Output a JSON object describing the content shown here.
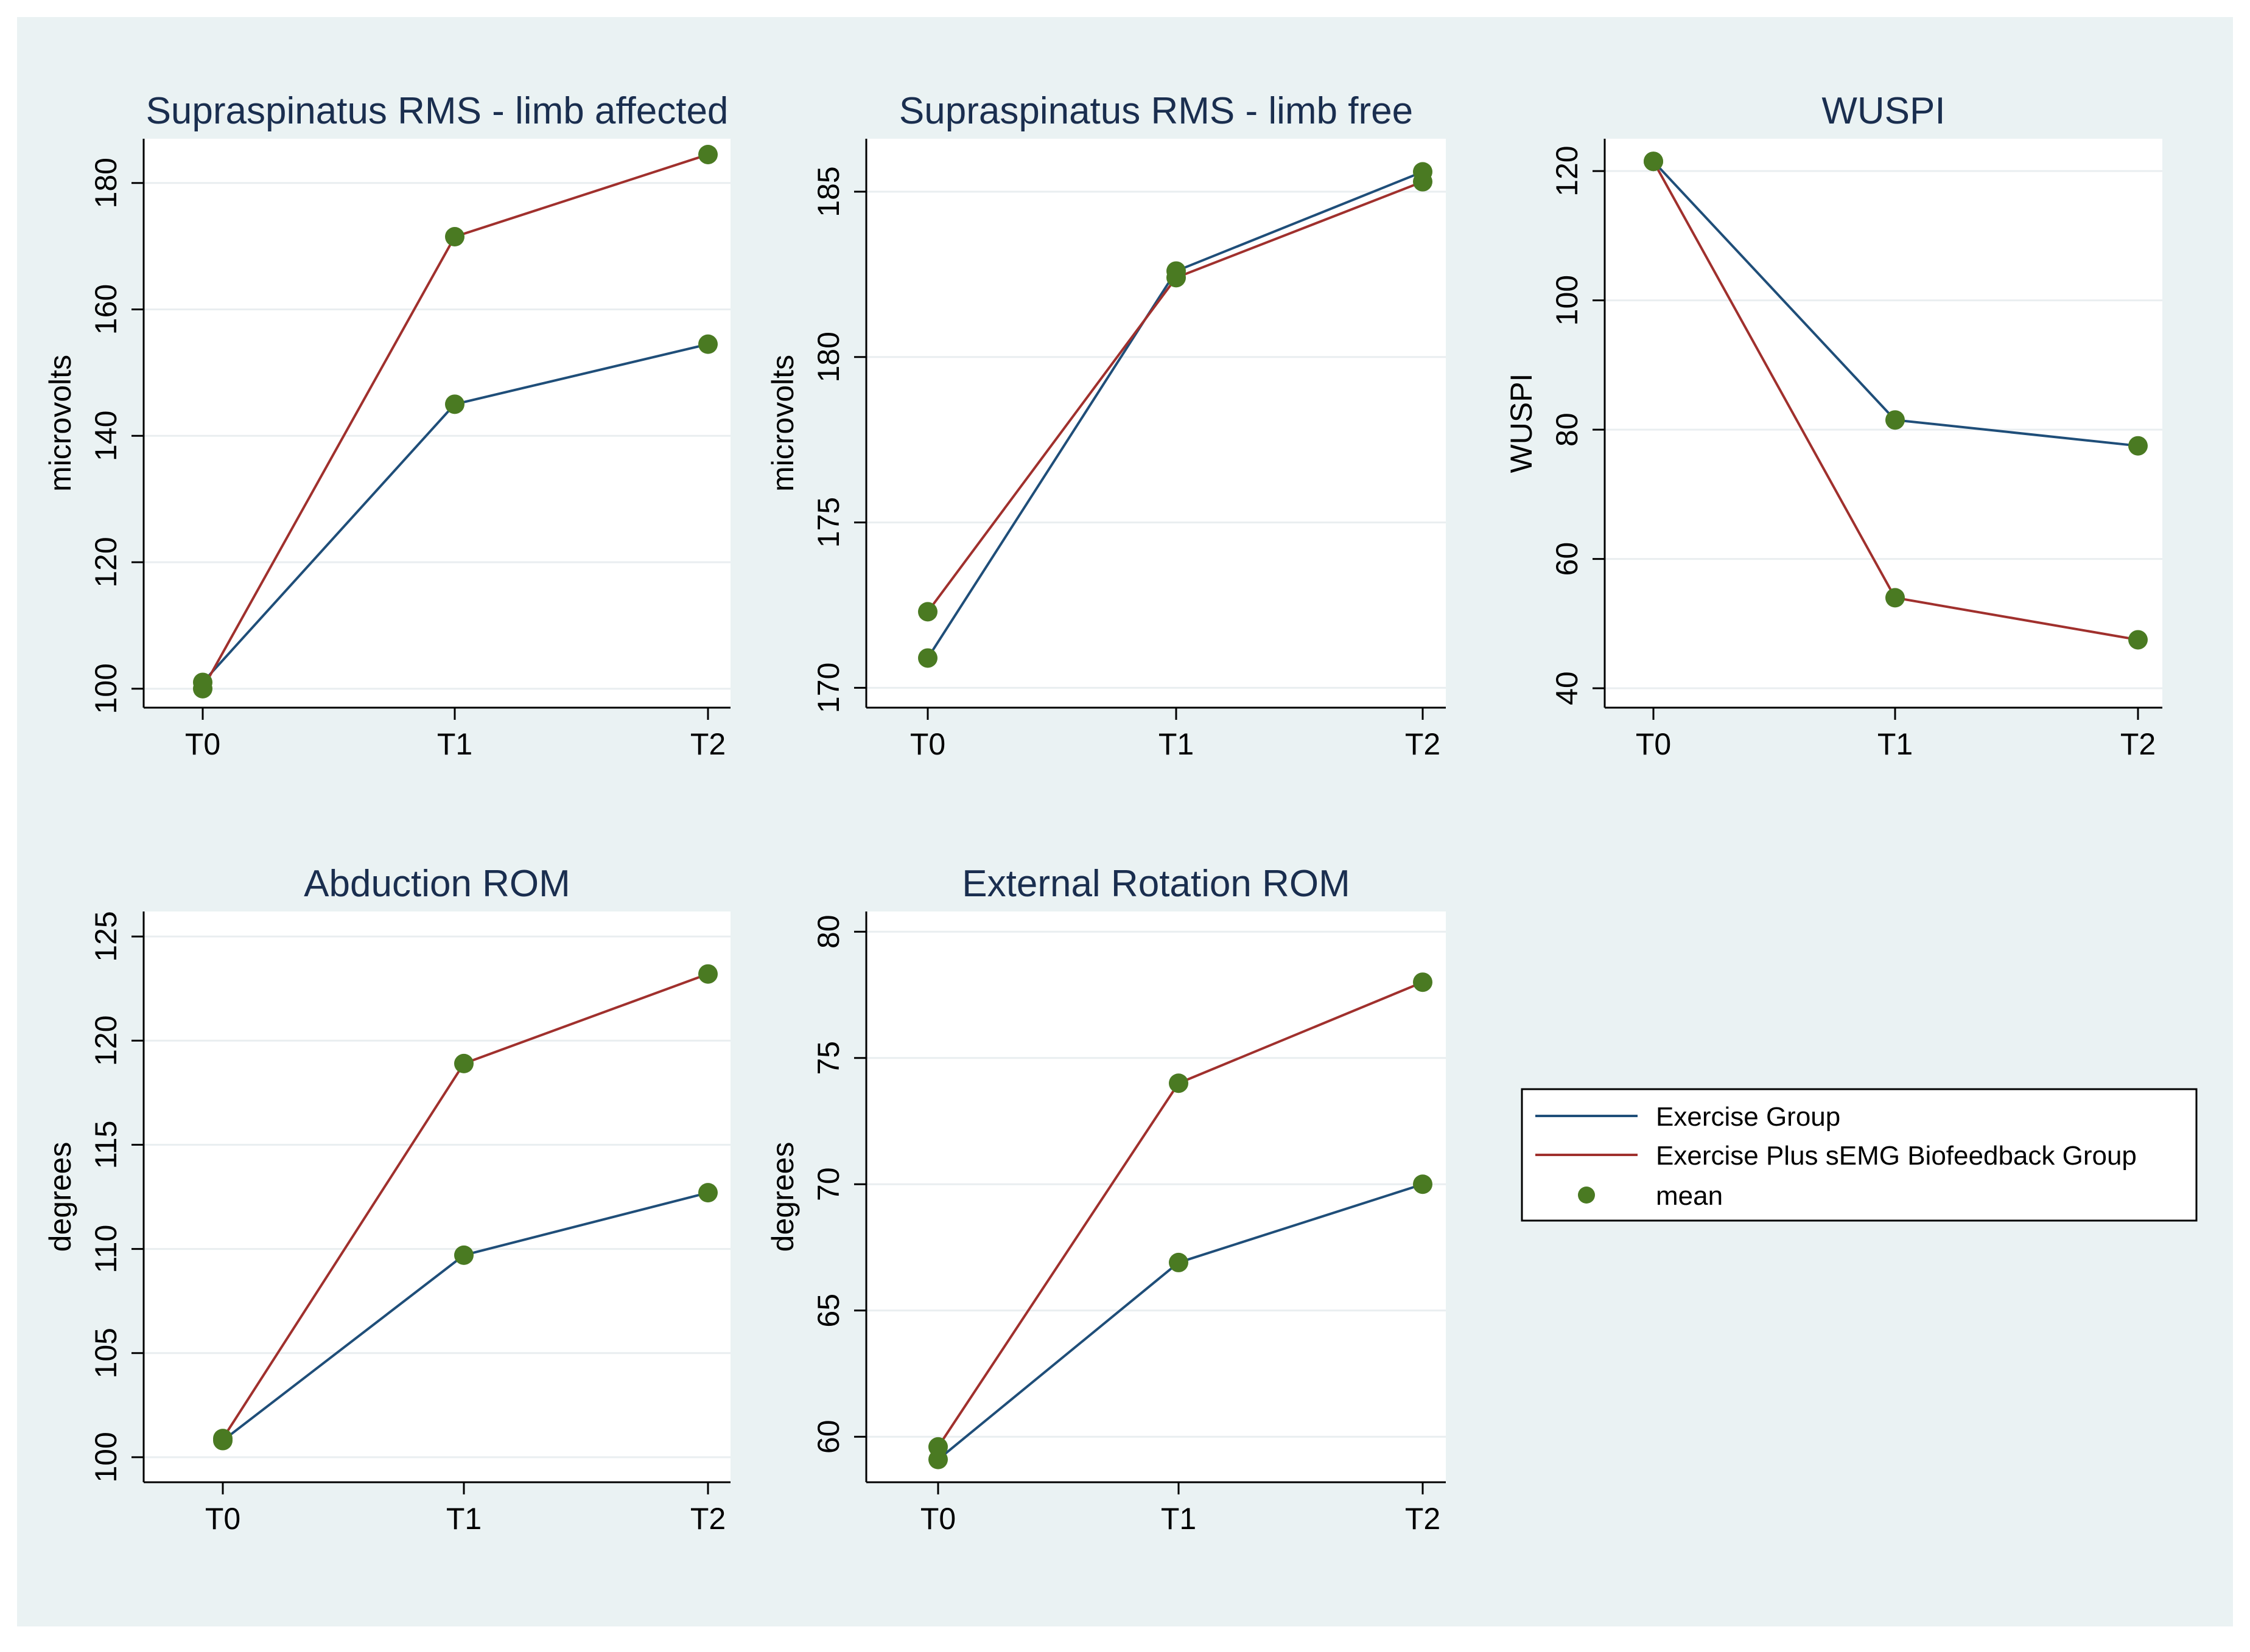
{
  "chart_data": [
    {
      "type": "line",
      "title": "Supraspinatus RMS - limb affected",
      "xlabel": "",
      "ylabel": "microvolts",
      "categories": [
        "T0",
        "T1",
        "T2"
      ],
      "ylim": [
        97,
        187
      ],
      "yticks": [
        100,
        120,
        140,
        160,
        180
      ],
      "grid": true,
      "series": [
        {
          "name": "Exercise Group",
          "values": [
            101,
            145,
            154.5
          ]
        },
        {
          "name": "Exercise Plus sEMG Biofeedback Group",
          "values": [
            100,
            171.5,
            184.5
          ]
        }
      ]
    },
    {
      "type": "line",
      "title": "Supraspinatus RMS - limb free",
      "xlabel": "",
      "ylabel": "microvolts",
      "categories": [
        "T0",
        "T1",
        "T2"
      ],
      "ylim": [
        169.4,
        186.6
      ],
      "yticks": [
        170,
        175,
        180,
        185
      ],
      "grid": true,
      "series": [
        {
          "name": "Exercise Group",
          "values": [
            170.9,
            182.6,
            185.6
          ]
        },
        {
          "name": "Exercise Plus sEMG Biofeedback Group",
          "values": [
            172.3,
            182.4,
            185.3
          ]
        }
      ]
    },
    {
      "type": "line",
      "title": "WUSPI",
      "xlabel": "",
      "ylabel": "WUSPI",
      "categories": [
        "T0",
        "T1",
        "T2"
      ],
      "ylim": [
        37,
        125
      ],
      "yticks": [
        40,
        60,
        80,
        100,
        120
      ],
      "grid": true,
      "series": [
        {
          "name": "Exercise Group",
          "values": [
            121.5,
            81.5,
            77.5
          ]
        },
        {
          "name": "Exercise Plus sEMG Biofeedback Group",
          "values": [
            121.5,
            54,
            47.5
          ]
        }
      ]
    },
    {
      "type": "line",
      "title": "Abduction ROM",
      "xlabel": "",
      "ylabel": "degrees",
      "categories": [
        "T0",
        "T1",
        "T2"
      ],
      "ylim": [
        98.8,
        126.2
      ],
      "yticks": [
        100,
        105,
        110,
        115,
        120,
        125
      ],
      "grid": true,
      "series": [
        {
          "name": "Exercise Group",
          "values": [
            100.8,
            109.7,
            112.7
          ]
        },
        {
          "name": "Exercise Plus sEMG Biofeedback Group",
          "values": [
            100.9,
            118.9,
            123.2
          ]
        }
      ]
    },
    {
      "type": "line",
      "title": "External Rotation ROM",
      "xlabel": "",
      "ylabel": "degrees",
      "categories": [
        "T0",
        "T1",
        "T2"
      ],
      "ylim": [
        58.2,
        80.8
      ],
      "yticks": [
        60,
        65,
        70,
        75,
        80
      ],
      "grid": true,
      "series": [
        {
          "name": "Exercise Group",
          "values": [
            59.1,
            66.9,
            70.0
          ]
        },
        {
          "name": "Exercise Plus sEMG Biofeedback Group",
          "values": [
            59.6,
            74.0,
            78.0
          ]
        }
      ]
    }
  ],
  "legend": {
    "placement": "bottom-right",
    "items": [
      {
        "label": "Exercise Group",
        "kind": "line",
        "color": "#1f4e79"
      },
      {
        "label": "Exercise Plus sEMG Biofeedback Group",
        "kind": "line",
        "color": "#a0302d"
      },
      {
        "label": "mean",
        "kind": "marker",
        "color": "#4a7a22"
      }
    ]
  },
  "colors": {
    "outer_background": "#eaf2f3",
    "plot_background": "#ffffff",
    "series": [
      "#1f4e79",
      "#a0302d"
    ],
    "marker": "#4a7a22",
    "title": "#1a2e4f",
    "grid": "#e9eef0"
  }
}
